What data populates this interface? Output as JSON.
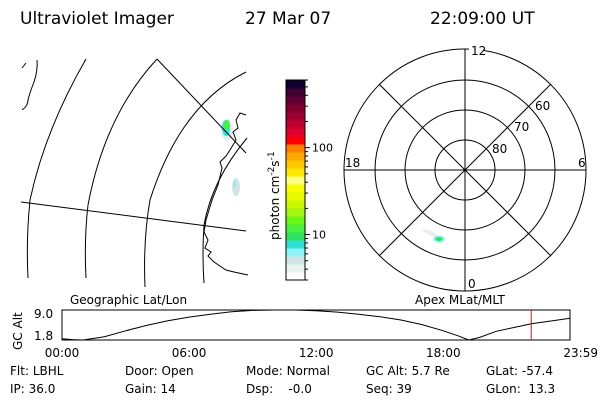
{
  "header": {
    "title": "Ultraviolet Imager",
    "date": "27 Mar 07",
    "time": "22:09:00 UT"
  },
  "colorbar": {
    "label": "photon cm",
    "label_sup1": "-2",
    "label_mid": "s",
    "label_sup2": "-1",
    "scale": "log",
    "range": [
      3,
      600
    ],
    "ticks": [
      {
        "value": 100,
        "label": "100"
      },
      {
        "value": 10,
        "label": "10"
      }
    ],
    "colors": [
      "#ffffff",
      "#e8f4ee",
      "#d4e4e4",
      "#90f0f8",
      "#30e0d8",
      "#30e060",
      "#48f040",
      "#68f818",
      "#a0f810",
      "#c8f800",
      "#e8f800",
      "#f8ff00",
      "#ffff80",
      "#ffe800",
      "#ffc800",
      "#ffa800",
      "#ff8000",
      "#ff0000",
      "#e00030",
      "#c00030",
      "#a00030",
      "#800030",
      "#600030",
      "#400030",
      "#100030"
    ]
  },
  "map": {
    "label": "Geographic Lat/Lon"
  },
  "polar": {
    "label": "Apex MLat/MLT",
    "mlt_labels": [
      "12",
      "6",
      "0",
      "18"
    ],
    "lat_labels": [
      "80",
      "70",
      "60"
    ]
  },
  "chart_data": {
    "type": "line",
    "ylabel": "GC Alt",
    "yticks": [
      "9.0",
      "1.8"
    ],
    "ylim": [
      1.8,
      9.0
    ],
    "xticks": [
      "00:00",
      "06:00",
      "12:00",
      "18:00",
      "23:59"
    ],
    "xlim_hours": [
      0,
      23.98
    ],
    "x_hours": [
      0,
      0.5,
      1,
      2,
      3,
      4,
      5,
      6,
      7,
      8,
      9,
      10,
      11,
      12,
      13,
      14,
      15,
      16,
      17,
      18,
      18.7,
      19.2,
      19.7,
      20.5,
      21.5,
      22.15,
      23,
      23.98
    ],
    "y": [
      2.1,
      1.9,
      1.8,
      2.6,
      4.0,
      5.3,
      6.4,
      7.3,
      8.0,
      8.6,
      8.9,
      9.0,
      9.0,
      8.8,
      8.5,
      8.0,
      7.4,
      6.6,
      5.5,
      4.0,
      2.8,
      1.8,
      2.4,
      3.9,
      5.0,
      5.7,
      6.3,
      7.0
    ],
    "current_time_hours": 22.15,
    "current_marker_color": "#ff0000"
  },
  "info": {
    "row1": [
      {
        "label": "Flt:",
        "value": "LBHL"
      },
      {
        "label": "Door:",
        "value": "Open"
      },
      {
        "label": "Mode:",
        "value": "Normal"
      },
      {
        "label": "GC Alt:",
        "value": "5.7 Re"
      },
      {
        "label": "GLat:",
        "value": "-57.4"
      }
    ],
    "row2": [
      {
        "label": "IP:",
        "value": "36.0"
      },
      {
        "label": "Gain:",
        "value": "14"
      },
      {
        "label": "Dsp:",
        "value": "-0.0"
      },
      {
        "label": "Seq:",
        "value": "39"
      },
      {
        "label": "GLon:",
        "value": "13.3"
      }
    ]
  }
}
